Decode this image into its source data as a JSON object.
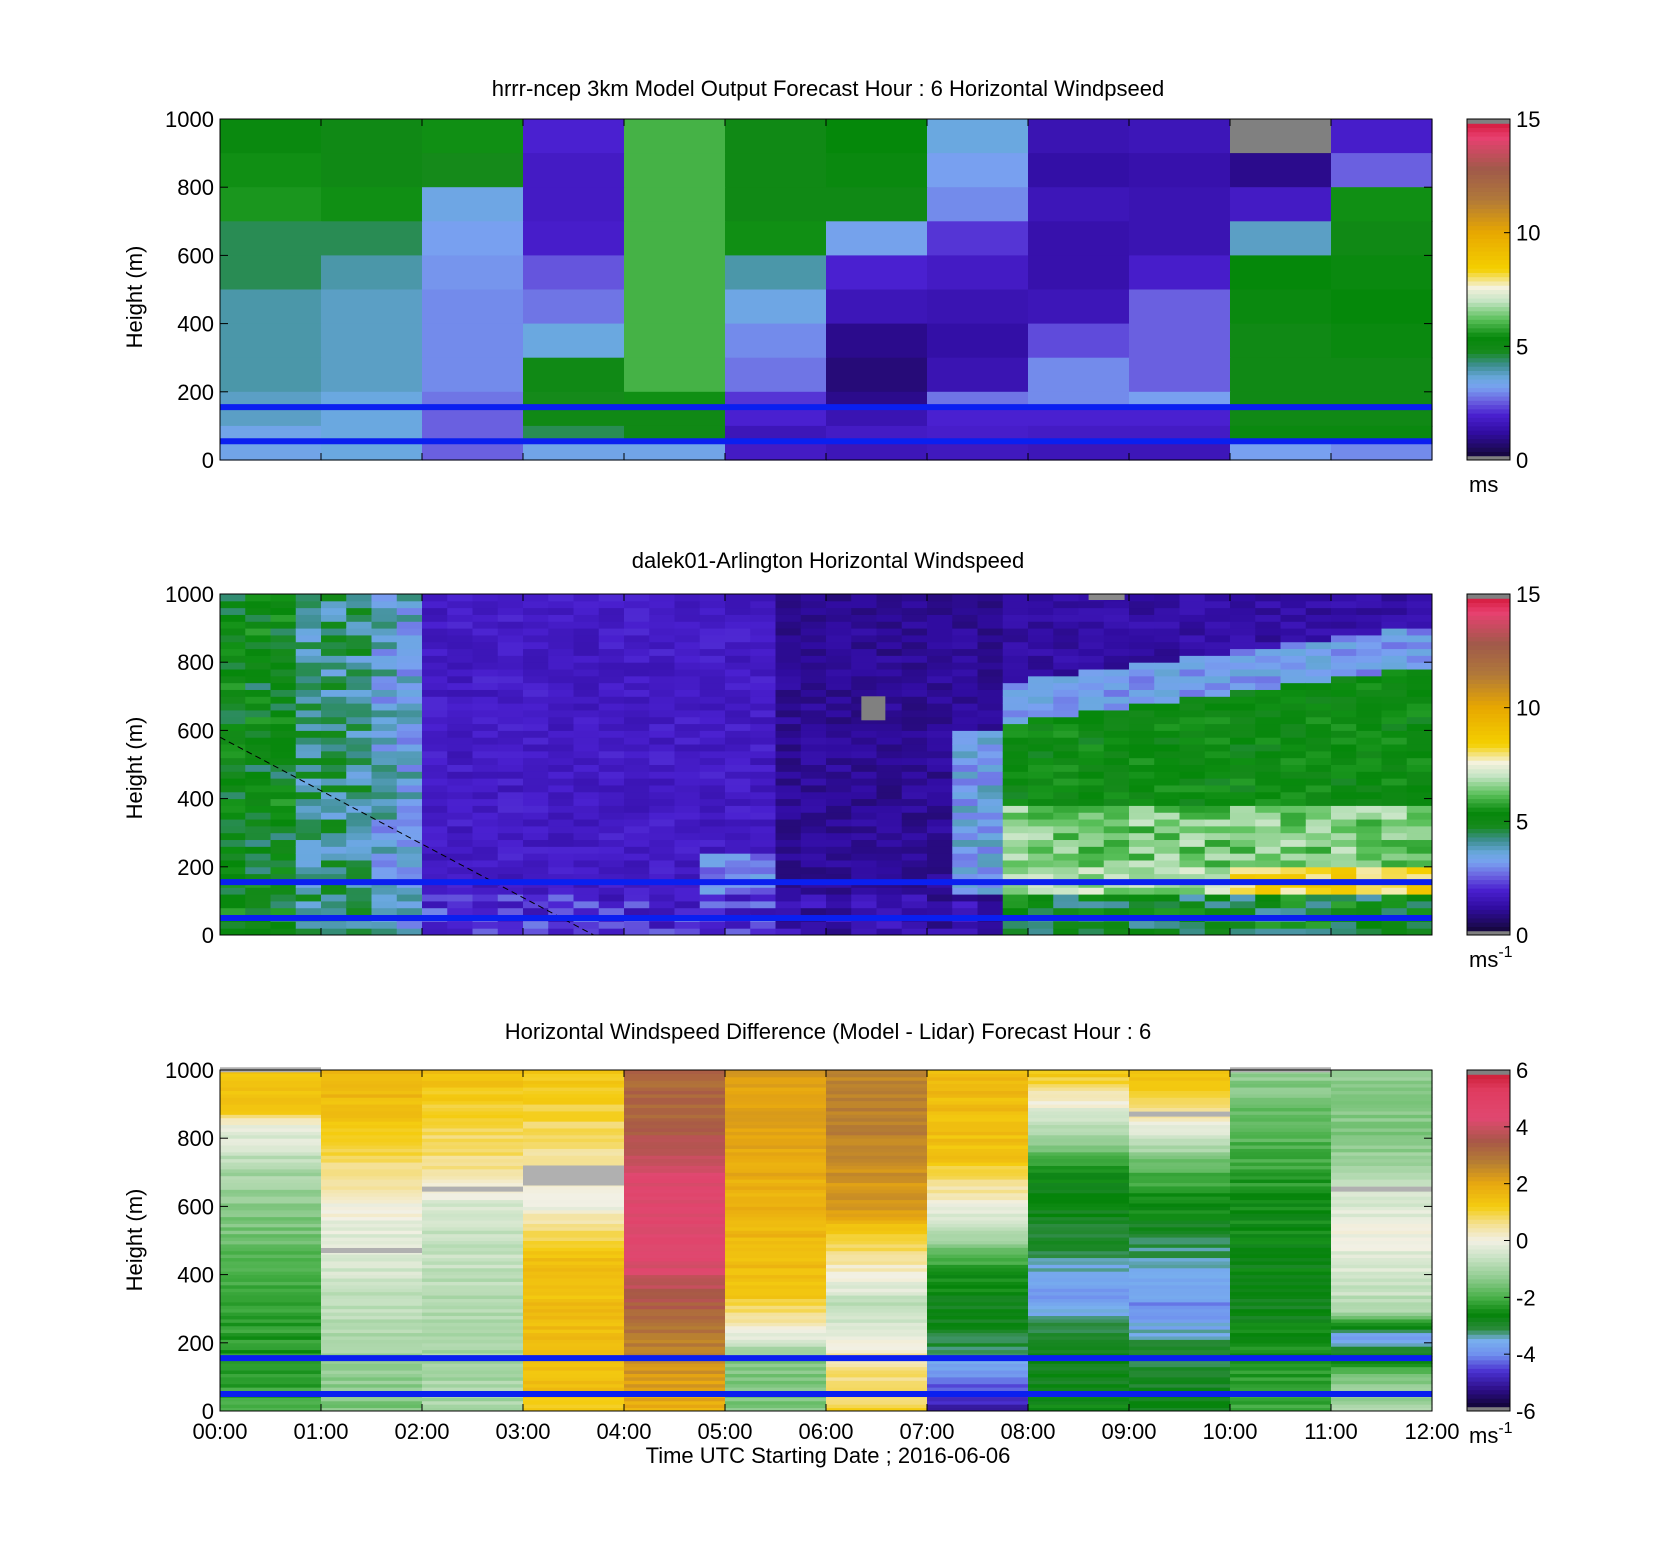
{
  "chart_data": [
    {
      "type": "heatmap",
      "title": "hrrr-ncep 3km Model Output   Forecast Hour : 6 Horizontal Windpseed",
      "ylabel": "Height (m)",
      "xlabel": "",
      "ylim": [
        0,
        1000
      ],
      "yticks": [
        0,
        200,
        400,
        600,
        800,
        1000
      ],
      "xlim_hours": [
        0,
        12
      ],
      "colorbar": {
        "min": 0,
        "max": 15,
        "ticks": [
          0,
          5,
          10,
          15
        ],
        "unit": "ms",
        "unit_sup": ""
      },
      "colormap": "speed",
      "reference_lines_m": [
        55,
        155
      ],
      "layout": "model",
      "rows_top_to_bottom": [
        1000,
        900,
        800,
        700,
        600,
        500,
        400,
        300,
        200,
        150,
        100,
        50
      ],
      "values": [
        [
          5.2,
          5.0,
          5.5,
          2.0,
          6.0,
          5.0,
          5.4,
          3.6,
          1.5,
          1.6,
          0.2,
          1.9
        ],
        [
          5.5,
          5.0,
          4.8,
          1.8,
          6.0,
          5.0,
          5.2,
          3.2,
          1.3,
          1.4,
          1.0,
          2.6
        ],
        [
          5.6,
          5.5,
          3.5,
          1.8,
          6.0,
          5.0,
          5.0,
          3.0,
          1.6,
          1.5,
          1.8,
          5.5
        ],
        [
          4.5,
          4.5,
          3.2,
          1.9,
          6.0,
          5.5,
          3.3,
          2.2,
          1.4,
          1.5,
          3.8,
          5.0
        ],
        [
          4.5,
          4.0,
          3.1,
          2.5,
          6.0,
          4.0,
          2.0,
          1.8,
          1.4,
          1.9,
          5.4,
          5.2
        ],
        [
          4.0,
          3.8,
          3.0,
          2.8,
          6.0,
          3.5,
          1.6,
          1.5,
          1.6,
          2.6,
          5.2,
          5.4
        ],
        [
          4.0,
          3.8,
          3.0,
          3.6,
          6.0,
          3.0,
          1.0,
          1.3,
          2.4,
          2.6,
          5.0,
          5.2
        ],
        [
          4.0,
          3.8,
          3.0,
          5.0,
          6.0,
          2.8,
          0.8,
          1.5,
          3.0,
          2.6,
          5.0,
          5.0
        ],
        [
          3.8,
          3.6,
          2.8,
          4.8,
          5.5,
          2.2,
          1.0,
          2.8,
          3.0,
          3.2,
          5.0,
          5.0
        ],
        [
          3.8,
          3.6,
          2.6,
          5.0,
          5.0,
          2.0,
          1.5,
          2.0,
          2.0,
          2.0,
          5.0,
          5.0
        ],
        [
          3.4,
          3.6,
          2.6,
          4.5,
          5.0,
          1.6,
          1.8,
          1.9,
          1.8,
          1.8,
          5.2,
          5.2
        ],
        [
          3.4,
          3.6,
          2.6,
          3.4,
          3.4,
          1.8,
          1.6,
          1.7,
          1.6,
          1.6,
          3.2,
          3.0
        ]
      ]
    },
    {
      "type": "heatmap",
      "title": "dalek01-Arlington  Horizontal Windspeed",
      "ylabel": "Height (m)",
      "xlabel": "",
      "ylim": [
        0,
        1000
      ],
      "yticks": [
        0,
        200,
        400,
        600,
        800,
        1000
      ],
      "xlim_hours": [
        0,
        12
      ],
      "colorbar": {
        "min": 0,
        "max": 15,
        "ticks": [
          0,
          5,
          10,
          15
        ],
        "unit": "ms",
        "unit_sup": "-1"
      },
      "colormap": "speed",
      "reference_lines_m": [
        50,
        155
      ],
      "layout": "lidar",
      "lidar_profile_times_hours": [
        0.0,
        0.25,
        0.5,
        0.75,
        1.0,
        1.25,
        1.5,
        1.75,
        2.0,
        2.25,
        2.5,
        2.75,
        3.0,
        3.25,
        3.5,
        3.75,
        4.0,
        4.25,
        4.5,
        4.75,
        5.0,
        5.25,
        5.5,
        5.75,
        6.0,
        6.25,
        6.5,
        6.75,
        7.0,
        7.25,
        7.5,
        7.75,
        8.0,
        8.25,
        8.5,
        8.75,
        9.0,
        9.25,
        9.5,
        9.75,
        10.0,
        10.25,
        10.5,
        10.75,
        11.0,
        11.25,
        11.5,
        11.75
      ]
    },
    {
      "type": "heatmap",
      "title": "Horizontal Windspeed Difference (Model - Lidar) Forecast Hour : 6",
      "ylabel": "Height (m)",
      "xlabel": "Time UTC  Starting Date ; 2016-06-06",
      "ylim": [
        0,
        1000
      ],
      "yticks": [
        0,
        200,
        400,
        600,
        800,
        1000
      ],
      "xlim_hours": [
        0,
        12
      ],
      "xticks": [
        "00:00",
        "01:00",
        "02:00",
        "03:00",
        "04:00",
        "05:00",
        "06:00",
        "07:00",
        "08:00",
        "09:00",
        "10:00",
        "11:00",
        "12:00"
      ],
      "colorbar": {
        "min": -6,
        "max": 6,
        "ticks": [
          -6,
          -4,
          -2,
          0,
          2,
          4,
          6
        ],
        "unit": "ms",
        "unit_sup": "-1"
      },
      "colormap": "diff",
      "reference_lines_m": [
        50,
        155
      ],
      "layout": "diff",
      "column_profiles_m_value": [
        [
          [
            1000,
            1.5
          ],
          [
            880,
            1.2
          ],
          [
            840,
            0.0
          ],
          [
            700,
            -1.0
          ],
          [
            400,
            -2.0
          ],
          [
            150,
            -2.4
          ],
          [
            0,
            -2.0
          ]
        ],
        [
          [
            1000,
            1.8
          ],
          [
            850,
            1.4
          ],
          [
            700,
            0.6
          ],
          [
            600,
            0.0
          ],
          [
            400,
            -0.5
          ],
          [
            150,
            -1.2
          ],
          [
            0,
            -1.5
          ]
        ],
        [
          [
            1000,
            1.5
          ],
          [
            850,
            1.0
          ],
          [
            700,
            0.5
          ],
          [
            600,
            -0.5
          ],
          [
            150,
            -1.0
          ],
          [
            0,
            -1.0
          ]
        ],
        [
          [
            1000,
            1.3
          ],
          [
            800,
            0.8
          ],
          [
            600,
            0.0
          ],
          [
            450,
            1.4
          ],
          [
            200,
            1.6
          ],
          [
            0,
            1.3
          ]
        ],
        [
          [
            1000,
            3.2
          ],
          [
            850,
            3.2
          ],
          [
            700,
            4.3
          ],
          [
            450,
            4.4
          ],
          [
            250,
            3.0
          ],
          [
            0,
            1.8
          ]
        ],
        [
          [
            1000,
            2.2
          ],
          [
            800,
            2.0
          ],
          [
            600,
            1.8
          ],
          [
            350,
            1.4
          ],
          [
            230,
            0.0
          ],
          [
            150,
            -1.5
          ],
          [
            0,
            -1.5
          ]
        ],
        [
          [
            1000,
            2.5
          ],
          [
            850,
            2.8
          ],
          [
            600,
            2.2
          ],
          [
            450,
            0.5
          ],
          [
            300,
            -0.8
          ],
          [
            150,
            0.5
          ],
          [
            0,
            1.0
          ]
        ],
        [
          [
            1000,
            1.6
          ],
          [
            750,
            1.4
          ],
          [
            600,
            0.0
          ],
          [
            400,
            -2.5
          ],
          [
            200,
            -3.0
          ],
          [
            100,
            -4.0
          ],
          [
            0,
            -5.0
          ]
        ],
        [
          [
            1000,
            1.4
          ],
          [
            900,
            0.0
          ],
          [
            700,
            -2.5
          ],
          [
            500,
            -3.0
          ],
          [
            350,
            -3.8
          ],
          [
            200,
            -3.0
          ],
          [
            0,
            -2.5
          ]
        ],
        [
          [
            1000,
            1.6
          ],
          [
            880,
            0.5
          ],
          [
            700,
            -2.0
          ],
          [
            450,
            -3.3
          ],
          [
            300,
            -4.0
          ],
          [
            180,
            -3.0
          ],
          [
            0,
            -2.8
          ]
        ],
        [
          [
            1000,
            -1.2
          ],
          [
            900,
            -1.6
          ],
          [
            600,
            -2.5
          ],
          [
            300,
            -2.8
          ],
          [
            150,
            -2.4
          ],
          [
            0,
            -2.0
          ]
        ],
        [
          [
            1000,
            -1.2
          ],
          [
            800,
            -1.5
          ],
          [
            650,
            -0.5
          ],
          [
            520,
            0.0
          ],
          [
            300,
            -0.8
          ],
          [
            220,
            -3.8
          ],
          [
            100,
            -1.5
          ],
          [
            0,
            -1.0
          ]
        ]
      ]
    }
  ]
}
